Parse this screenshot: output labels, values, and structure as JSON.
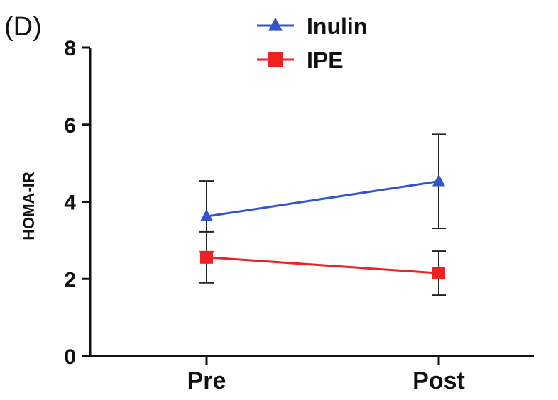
{
  "panel_label": "(D)",
  "chart_data": {
    "type": "line",
    "title": "",
    "xlabel": "",
    "ylabel": "HOMA-IR",
    "categories": [
      "Pre",
      "Post"
    ],
    "ylim": [
      0,
      8
    ],
    "yticks": [
      0,
      2,
      4,
      6,
      8
    ],
    "grid": false,
    "legend": "top-center",
    "series": [
      {
        "name": "Inulin",
        "values": [
          3.62,
          4.53
        ],
        "error": [
          0.92,
          1.22
        ],
        "color": "#3355cc",
        "marker": "triangle"
      },
      {
        "name": "IPE",
        "values": [
          2.56,
          2.15
        ],
        "error": [
          0.66,
          0.57
        ],
        "color": "#ee2222",
        "marker": "square"
      }
    ]
  }
}
